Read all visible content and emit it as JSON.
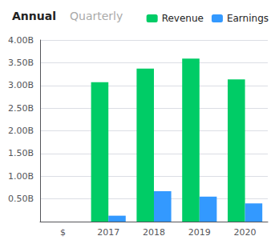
{
  "chart_data": {
    "type": "bar",
    "title": "Annual",
    "subtitle": "Quarterly",
    "categories": [
      "$",
      "2017",
      "2018",
      "2019",
      "2020"
    ],
    "series": [
      {
        "name": "Revenue",
        "color": "#00cc66",
        "values": [
          null,
          3.07,
          3.37,
          3.59,
          3.13
        ]
      },
      {
        "name": "Earnings",
        "color": "#3399ff",
        "values": [
          null,
          0.13,
          0.67,
          0.55,
          0.4
        ]
      }
    ],
    "ylim": [
      0,
      4.0
    ],
    "yticks": [
      {
        "value": 0.5,
        "label": "0.50B"
      },
      {
        "value": 1.0,
        "label": "1.00B"
      },
      {
        "value": 1.5,
        "label": "1.50B"
      },
      {
        "value": 2.0,
        "label": "2.00B"
      },
      {
        "value": 2.5,
        "label": "2.50B"
      },
      {
        "value": 3.0,
        "label": "3.00B"
      },
      {
        "value": 3.5,
        "label": "3.50B"
      },
      {
        "value": 4.0,
        "label": "4.00B"
      }
    ],
    "grid": true,
    "legend": "upper right"
  }
}
